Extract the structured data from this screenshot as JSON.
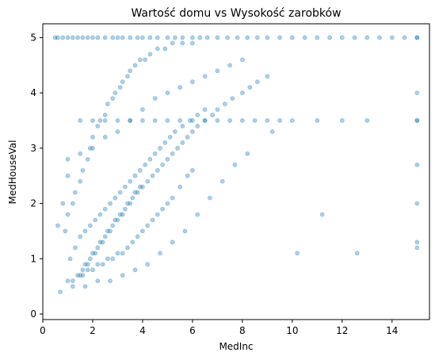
{
  "chart_data": {
    "type": "scatter",
    "title": "Wartość domu vs Wysokość zarobków",
    "xlabel": "MedInc",
    "ylabel": "MedHouseVal",
    "xlim": [
      0.0,
      15.5
    ],
    "ylim": [
      -0.1,
      5.25
    ],
    "x_ticks": [
      0,
      2,
      4,
      6,
      8,
      10,
      12,
      14
    ],
    "y_ticks": [
      0,
      1,
      2,
      3,
      4,
      5
    ],
    "x_tick_labels": [
      "0",
      "2",
      "4",
      "6",
      "8",
      "10",
      "12",
      "14"
    ],
    "y_tick_labels": [
      "0",
      "1",
      "2",
      "3",
      "4",
      "5"
    ],
    "grid": false,
    "marker_color": "#1f77b4",
    "marker_alpha": 0.15,
    "series": [
      {
        "x": [
          0.5,
          0.6,
          0.8,
          1.0,
          1.2,
          1.4,
          1.6,
          1.8,
          2.0,
          2.2,
          2.5,
          2.8,
          3.0,
          3.2,
          3.5,
          3.8,
          4.0,
          4.3,
          4.6,
          5.0,
          5.3,
          5.6,
          6.0,
          6.3,
          6.6,
          7.0,
          7.4,
          7.8,
          8.2,
          8.6,
          9.0,
          9.5,
          10.0,
          10.5,
          11.0,
          11.5,
          12.0,
          12.5,
          13.0,
          13.5,
          14.0,
          14.5,
          15.0,
          15.0,
          15.0,
          15.0,
          15.0,
          1.5,
          1.6,
          1.7,
          1.8,
          1.9,
          2.0,
          2.1,
          2.2,
          2.3,
          2.4,
          2.5,
          2.6,
          2.7,
          2.8,
          2.9,
          3.0,
          3.1,
          3.2,
          3.3,
          3.4,
          3.5,
          3.6,
          3.7,
          3.8,
          3.9,
          4.0,
          4.2,
          4.4,
          4.6,
          4.8,
          5.0,
          5.2,
          5.4,
          5.6,
          5.8,
          6.0,
          6.2,
          6.5,
          6.8,
          7.0,
          7.3,
          7.6,
          8.0,
          8.3,
          8.6,
          9.0,
          1.0,
          1.2,
          1.4,
          1.6,
          1.8,
          2.0,
          2.2,
          2.4,
          2.6,
          2.8,
          3.0,
          3.2,
          3.4,
          3.6,
          3.8,
          4.0,
          4.2,
          4.4,
          4.6,
          4.8,
          5.0,
          5.2,
          5.5,
          5.8,
          6.0,
          1.1,
          1.3,
          1.5,
          1.7,
          1.9,
          2.1,
          2.3,
          2.5,
          2.7,
          2.9,
          3.1,
          3.3,
          3.5,
          3.7,
          3.9,
          4.1,
          4.3,
          4.5,
          4.7,
          4.9,
          5.1,
          5.3,
          5.6,
          5.9,
          6.2,
          6.5,
          0.9,
          1.0,
          1.2,
          1.3,
          1.5,
          1.6,
          1.8,
          1.9,
          2.0,
          2.2,
          2.3,
          2.5,
          2.6,
          2.8,
          2.9,
          3.1,
          3.2,
          3.4,
          3.5,
          3.7,
          3.9,
          4.1,
          4.3,
          4.6,
          4.9,
          5.2,
          5.6,
          6.0,
          0.6,
          0.8,
          1.0,
          1.5,
          2.0,
          2.5,
          3.0,
          3.5,
          4.0,
          4.5,
          5.0,
          5.5,
          6.0,
          6.5,
          7.0,
          7.5,
          8.0,
          8.5,
          9.0,
          9.5,
          10.0,
          11.0,
          12.0,
          13.0,
          15.0,
          15.0,
          15.0,
          15.0,
          0.7,
          1.2,
          1.7,
          2.2,
          2.7,
          3.2,
          3.7,
          4.2,
          4.7,
          5.2,
          5.7,
          6.2,
          6.7,
          7.2,
          7.7,
          8.2,
          9.2,
          10.2,
          11.2,
          12.6,
          1.0,
          1.5,
          2.0,
          2.5,
          3.0,
          3.5,
          4.0,
          4.5,
          5.0,
          5.5,
          6.0,
          6.5,
          7.0,
          7.5,
          8.0
        ],
        "y": [
          5.0,
          5.0,
          5.0,
          5.0,
          5.0,
          5.0,
          5.0,
          5.0,
          5.0,
          5.0,
          5.0,
          5.0,
          5.0,
          5.0,
          5.0,
          5.0,
          5.0,
          5.0,
          5.0,
          5.0,
          5.0,
          5.0,
          5.0,
          5.0,
          5.0,
          5.0,
          5.0,
          5.0,
          5.0,
          5.0,
          5.0,
          5.0,
          5.0,
          5.0,
          5.0,
          5.0,
          5.0,
          5.0,
          5.0,
          5.0,
          5.0,
          5.0,
          5.0,
          4.0,
          3.5,
          1.3,
          5.0,
          0.7,
          0.8,
          0.9,
          0.9,
          1.0,
          1.1,
          1.1,
          1.2,
          1.3,
          1.3,
          1.4,
          1.5,
          1.5,
          1.6,
          1.7,
          1.7,
          1.8,
          1.8,
          1.9,
          2.0,
          2.0,
          2.1,
          2.2,
          2.2,
          2.3,
          2.3,
          2.4,
          2.5,
          2.6,
          2.7,
          2.8,
          2.9,
          3.0,
          3.1,
          3.2,
          3.3,
          3.4,
          3.5,
          3.6,
          3.7,
          3.8,
          3.9,
          4.0,
          4.1,
          4.2,
          4.3,
          0.6,
          0.6,
          0.7,
          0.7,
          0.8,
          0.8,
          0.9,
          0.9,
          1.0,
          1.0,
          1.1,
          1.1,
          1.2,
          1.3,
          1.4,
          1.5,
          1.6,
          1.7,
          1.8,
          1.9,
          2.0,
          2.1,
          2.3,
          2.5,
          2.6,
          1.0,
          1.2,
          1.4,
          1.5,
          1.6,
          1.7,
          1.8,
          1.9,
          2.0,
          2.1,
          2.2,
          2.3,
          2.4,
          2.5,
          2.6,
          2.7,
          2.8,
          2.9,
          3.0,
          3.1,
          3.2,
          3.3,
          3.4,
          3.5,
          3.6,
          3.7,
          1.5,
          1.8,
          2.0,
          2.2,
          2.4,
          2.6,
          2.8,
          3.0,
          3.2,
          3.4,
          3.5,
          3.6,
          3.8,
          3.9,
          4.0,
          4.1,
          4.2,
          4.3,
          4.4,
          4.5,
          4.6,
          4.6,
          4.7,
          4.8,
          4.8,
          4.9,
          4.9,
          4.9,
          1.6,
          2.0,
          2.5,
          3.5,
          3.5,
          3.5,
          3.5,
          3.5,
          3.5,
          3.5,
          3.5,
          3.5,
          3.5,
          3.5,
          3.5,
          3.5,
          3.5,
          3.5,
          3.5,
          3.5,
          3.5,
          3.5,
          3.5,
          3.5,
          3.5,
          2.7,
          2.0,
          1.2,
          0.4,
          0.5,
          0.5,
          0.6,
          0.6,
          0.7,
          0.8,
          0.9,
          1.1,
          1.3,
          1.5,
          1.8,
          2.1,
          2.4,
          2.7,
          2.9,
          3.3,
          1.1,
          1.8,
          1.1,
          2.8,
          2.9,
          3.0,
          3.2,
          3.3,
          3.5,
          3.7,
          3.9,
          4.0,
          4.1,
          4.2,
          4.3,
          4.4,
          4.5,
          4.6
        ]
      }
    ]
  }
}
